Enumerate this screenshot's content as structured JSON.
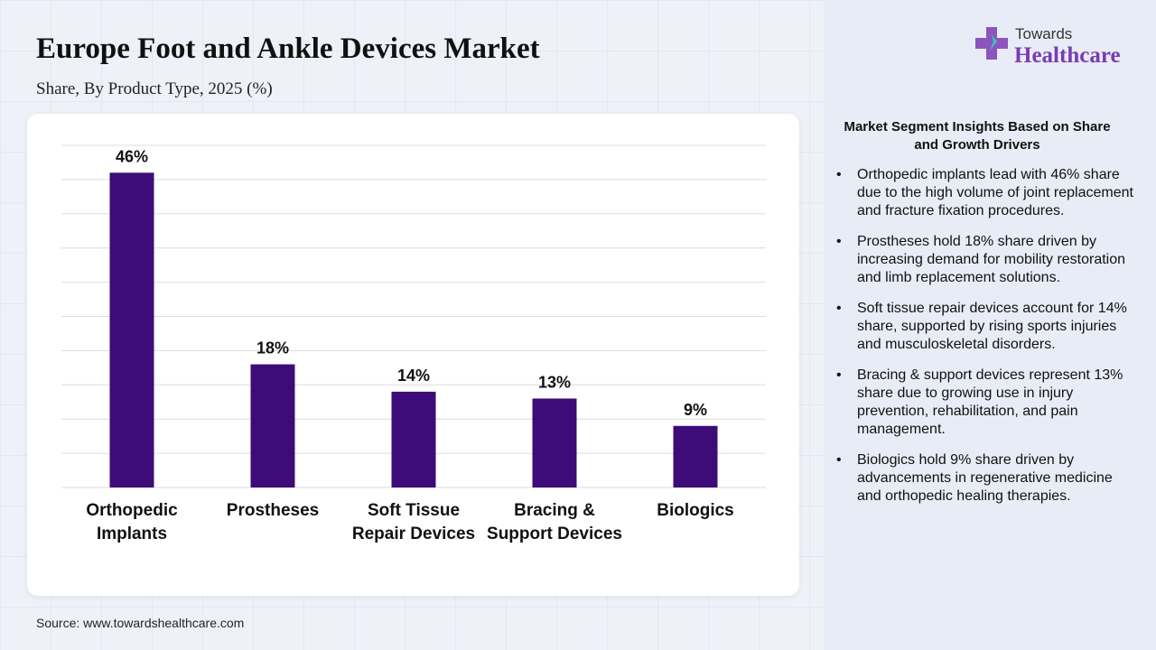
{
  "header": {
    "title": "Europe Foot and Ankle Devices Market",
    "subtitle": "Share, By Product Type, 2025 (%)"
  },
  "logo": {
    "top": "Towards",
    "bottom": "Healthcare"
  },
  "chart_data": {
    "type": "bar",
    "categories": [
      "Orthopedic Implants",
      "Prostheses",
      "Soft Tissue Repair Devices",
      "Bracing & Support Devices",
      "Biologics"
    ],
    "values": [
      46,
      18,
      14,
      13,
      9
    ],
    "value_labels": [
      "46%",
      "18%",
      "14%",
      "13%",
      "9%"
    ],
    "color": "#3d0c78",
    "ylim": [
      0,
      50
    ],
    "yticks": [
      0,
      5,
      10,
      15,
      20,
      25,
      30,
      35,
      40,
      45,
      50
    ],
    "grid": true
  },
  "insights": {
    "title": "Market Segment Insights Based on Share and Growth Drivers",
    "items": [
      "Orthopedic implants lead with 46% share due to the high volume of joint replacement and fracture fixation procedures.",
      "Prostheses hold 18% share driven by increasing demand for mobility restoration and limb replacement solutions.",
      "Soft tissue repair devices account for 14% share, supported by rising sports injuries and musculoskeletal disorders.",
      "Bracing & support devices represent 13% share due to growing use in injury prevention, rehabilitation, and pain management.",
      "Biologics hold 9% share driven by advancements in regenerative medicine and orthopedic healing therapies."
    ]
  },
  "source": "Source: www.towardshealthcare.com"
}
